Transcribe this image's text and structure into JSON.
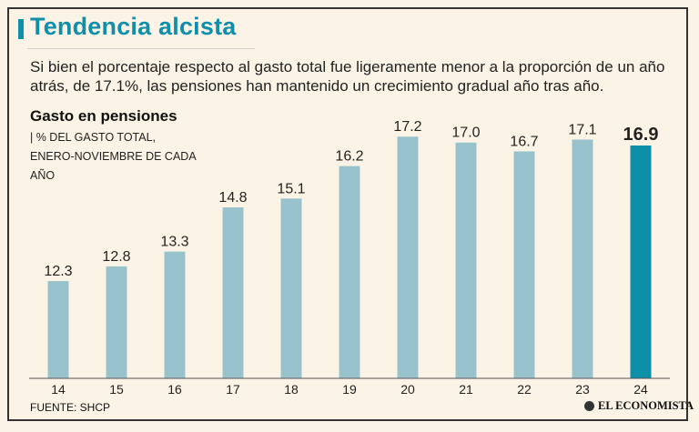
{
  "header": {
    "title": "Tendencia alcista",
    "subtitle": "Si bien el porcentaje respecto al gasto total fue ligeramente menor a la proporción de un año atrás, de 17.1%, las pensiones han mantenido un crecimiento gradual año tras año."
  },
  "chart_data": {
    "type": "bar",
    "title": "Gasto en pensiones",
    "subtitle": "| % DEL GASTO TOTAL, ENERO-NOVIEMBRE DE CADA AÑO",
    "categories": [
      "14",
      "15",
      "16",
      "17",
      "18",
      "19",
      "20",
      "21",
      "22",
      "23",
      "24"
    ],
    "values": [
      12.3,
      12.8,
      13.3,
      14.8,
      15.1,
      16.2,
      17.2,
      17.0,
      16.7,
      17.1,
      16.9
    ],
    "labels": [
      "12.3",
      "12.8",
      "13.3",
      "14.8",
      "15.1",
      "16.2",
      "17.2",
      "17.0",
      "16.7",
      "17.1",
      "16.9"
    ],
    "highlight_index": 10,
    "colors": {
      "bar": "#98c3cd",
      "highlight": "#0e8fa8",
      "axis": "#555555"
    },
    "xlabel": "",
    "ylabel": "",
    "ylim": [
      9.0,
      17.3
    ],
    "grid": false,
    "legend": "none"
  },
  "footer": {
    "source": "FUENTE: SHCP",
    "brand": "EL ECONOMISTA",
    "brand_icon": "el-economista-logo-icon"
  }
}
